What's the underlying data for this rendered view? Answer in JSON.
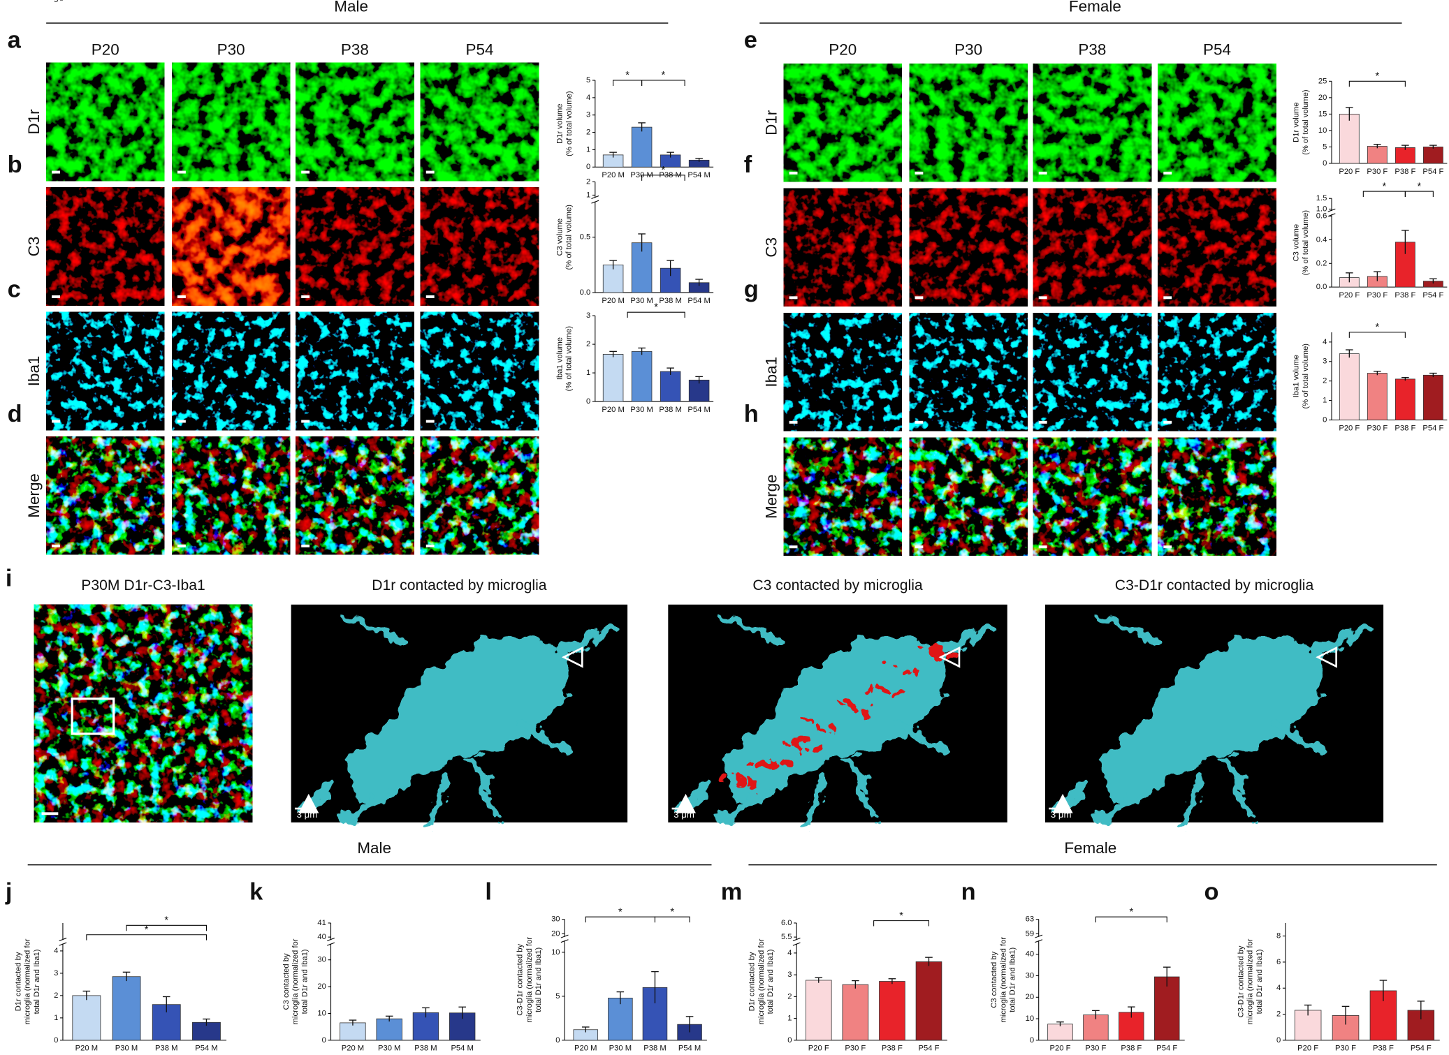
{
  "headers": {
    "male_top": "Male",
    "female_top": "Female",
    "male_bottom": "Male",
    "female_bottom": "Female"
  },
  "panel_letters": [
    "a",
    "b",
    "c",
    "d",
    "e",
    "f",
    "g",
    "h",
    "i",
    "j",
    "k",
    "l",
    "m",
    "n",
    "o"
  ],
  "male_columns": [
    "P20",
    "P30",
    "P38",
    "P54"
  ],
  "female_columns": [
    "P20",
    "P30",
    "P38",
    "P54"
  ],
  "male_rows": [
    "D1r",
    "C3",
    "Iba1",
    "Merge"
  ],
  "female_rows": [
    "D1r",
    "C3",
    "Iba1",
    "Merge"
  ],
  "panel_i": {
    "titles": [
      "P30M D1r-C3-Iba1",
      "D1r contacted by microglia",
      "C3 contacted by microglia",
      "C3-D1r contacted by microglia"
    ],
    "scale_label": "3 μm"
  },
  "chart_data": [
    {
      "type": "bar",
      "ylabel": [
        "D1r volume",
        "(% of total volume)"
      ],
      "categories": [
        "P20 M",
        "P30 M",
        "P38 M",
        "P54 M"
      ],
      "values": [
        0.7,
        2.3,
        0.7,
        0.4
      ],
      "errors": [
        0.15,
        0.25,
        0.15,
        0.1
      ],
      "colors": [
        "#c4daf2",
        "#5b8fd6",
        "#3553b5",
        "#27388a"
      ],
      "ylim": [
        0,
        5
      ],
      "yticks": [
        0,
        1,
        2,
        3,
        4,
        5
      ],
      "annotations": [
        "*",
        "*"
      ]
    },
    {
      "type": "bar",
      "ylabel": [
        "C3 volume",
        "(% of total volume)"
      ],
      "categories": [
        "P20 M",
        "P30 M",
        "P38 M",
        "P54 M"
      ],
      "values": [
        0.25,
        0.45,
        0.22,
        0.09
      ],
      "errors": [
        0.04,
        0.08,
        0.07,
        0.03
      ],
      "colors": [
        "#c4daf2",
        "#5b8fd6",
        "#3553b5",
        "#27388a"
      ],
      "ylim": [
        0,
        2
      ],
      "yticks": [
        {
          "value": 0,
          "label": "0.0"
        },
        0.5,
        1,
        2
      ],
      "axis_break": [
        0.8,
        1
      ],
      "annotations": [
        "*"
      ]
    },
    {
      "type": "bar",
      "ylabel": [
        "Iba1 volume",
        "(% of total volume)"
      ],
      "categories": [
        "P20 M",
        "P30 M",
        "P38 M",
        "P54 M"
      ],
      "values": [
        1.65,
        1.75,
        1.05,
        0.75
      ],
      "errors": [
        0.1,
        0.12,
        0.12,
        0.12
      ],
      "colors": [
        "#c4daf2",
        "#5b8fd6",
        "#3553b5",
        "#27388a"
      ],
      "ylim": [
        0,
        3
      ],
      "yticks": [
        0,
        1,
        2,
        3
      ],
      "annotations": [
        "*"
      ]
    },
    {
      "type": "bar",
      "ylabel": [
        "D1r volume",
        "(% of total volume)"
      ],
      "categories": [
        "P20 F",
        "P30 F",
        "P38 F",
        "P54 F"
      ],
      "values": [
        15,
        5.2,
        4.8,
        5
      ],
      "errors": [
        2,
        0.6,
        0.7,
        0.5
      ],
      "colors": [
        "#fad9dc",
        "#f08282",
        "#e8232a",
        "#a01c20"
      ],
      "ylim": [
        0,
        25
      ],
      "yticks": [
        0,
        5,
        10,
        15,
        20,
        25
      ],
      "annotations": [
        "*"
      ]
    },
    {
      "type": "bar",
      "ylabel": [
        "C3 volume",
        "(% of total volume)"
      ],
      "categories": [
        "P20 F",
        "P30 F",
        "P38 F",
        "P54 F"
      ],
      "values": [
        0.08,
        0.09,
        0.38,
        0.05
      ],
      "errors": [
        0.04,
        0.04,
        0.1,
        0.02
      ],
      "colors": [
        "#fad9dc",
        "#f08282",
        "#e8232a",
        "#a01c20"
      ],
      "ylim": [
        0,
        1.5
      ],
      "yticks": [
        {
          "value": 0,
          "label": "0.0"
        },
        0.2,
        0.4,
        0.6,
        {
          "value": 1,
          "label": "1.0"
        },
        1.5
      ],
      "axis_break": [
        0.6,
        1
      ],
      "annotations": [
        "*",
        "*"
      ]
    },
    {
      "type": "bar",
      "ylabel": [
        "Iba1 volume",
        "(% of total volume)"
      ],
      "categories": [
        "P20 F",
        "P30 F",
        "P38 F",
        "P54 F"
      ],
      "values": [
        3.4,
        2.4,
        2.1,
        2.3
      ],
      "errors": [
        0.2,
        0.1,
        0.08,
        0.1
      ],
      "colors": [
        "#fad9dc",
        "#f08282",
        "#e8232a",
        "#a01c20"
      ],
      "ylim": [
        0,
        4.5
      ],
      "yticks": [
        0,
        1,
        2,
        3,
        4
      ],
      "annotations": [
        "*"
      ]
    },
    {
      "type": "bar",
      "ylabel": [
        "D1r contacted by",
        "microglia (normalized for",
        "total D1r and Iba1)"
      ],
      "categories": [
        "P20 M",
        "P30 M",
        "P38 M",
        "P54 M"
      ],
      "values": [
        2.0,
        2.85,
        1.6,
        0.8
      ],
      "errors": [
        0.2,
        0.2,
        0.35,
        0.15
      ],
      "colors": [
        "#c4daf2",
        "#5b8fd6",
        "#3553b5",
        "#27388a"
      ],
      "ylim": [
        0,
        5
      ],
      "yticks": [
        0,
        1,
        2,
        3,
        4,
        5
      ],
      "axis_break": [
        4.2,
        5
      ],
      "annotations": [
        "*",
        "*"
      ]
    },
    {
      "type": "bar",
      "ylabel": [
        "C3 contacted by",
        "microglia (normalized for",
        "total D1r and Iba1)"
      ],
      "categories": [
        "P20 M",
        "P30 M",
        "P38 M",
        "P54 M"
      ],
      "values": [
        6.5,
        8,
        10.3,
        10.2
      ],
      "errors": [
        1,
        1,
        1.8,
        2.2
      ],
      "colors": [
        "#c4daf2",
        "#5b8fd6",
        "#3553b5",
        "#27388a"
      ],
      "ylim": [
        0,
        41
      ],
      "yticks": [
        0,
        10,
        20,
        30,
        40,
        41
      ],
      "axis_break": [
        35,
        40
      ]
    },
    {
      "type": "bar",
      "ylabel": [
        "C3-D1r contacted by",
        "microglia (normalized for",
        "total D1r and Iba1)"
      ],
      "categories": [
        "P20 M",
        "P30 M",
        "P38 M",
        "P54 M"
      ],
      "values": [
        1.2,
        4.8,
        6,
        1.8
      ],
      "errors": [
        0.3,
        0.7,
        1.8,
        0.9
      ],
      "colors": [
        "#c4daf2",
        "#5b8fd6",
        "#3553b5",
        "#27388a"
      ],
      "ylim": [
        0,
        30
      ],
      "yticks": [
        0,
        5,
        10,
        20,
        30
      ],
      "axis_break": [
        11,
        20
      ],
      "annotations": [
        "*",
        "*"
      ]
    },
    {
      "type": "bar",
      "ylabel": [
        "D1r contacted by",
        "microglia (normalized for",
        "total D1r and Iba1)"
      ],
      "categories": [
        "P20 F",
        "P30 F",
        "P38 F",
        "P54 F"
      ],
      "values": [
        2.75,
        2.55,
        2.7,
        3.6
      ],
      "errors": [
        0.12,
        0.18,
        0.12,
        0.2
      ],
      "colors": [
        "#fad9dc",
        "#f08282",
        "#e8232a",
        "#a01c20"
      ],
      "ylim": [
        0,
        6
      ],
      "yticks": [
        0,
        1,
        2,
        3,
        4,
        5.5,
        {
          "value": 6,
          "label": "6.0"
        }
      ],
      "axis_break": [
        4.3,
        5.5
      ],
      "annotations": [
        "*"
      ]
    },
    {
      "type": "bar",
      "ylabel": [
        "C3 contacted by",
        "microglia (normalized for",
        "total D1r and Iba1)"
      ],
      "categories": [
        "P20 F",
        "P30 F",
        "P38 F",
        "P54 F"
      ],
      "values": [
        7.5,
        11.8,
        13,
        29.5
      ],
      "errors": [
        1,
        2,
        2.5,
        4.5
      ],
      "colors": [
        "#fad9dc",
        "#f08282",
        "#e8232a",
        "#a01c20"
      ],
      "ylim": [
        0,
        63
      ],
      "yticks": [
        0,
        10,
        20,
        30,
        40,
        59,
        63
      ],
      "axis_break": [
        45,
        59
      ],
      "annotations": [
        "*"
      ]
    },
    {
      "type": "bar",
      "ylabel": [
        "C3-D1r contacted by",
        "microglia (normalized for",
        "total D1r and Iba1)"
      ],
      "categories": [
        "P20 F",
        "P30 F",
        "P38 F",
        "P54 F"
      ],
      "values": [
        2.3,
        1.9,
        3.8,
        2.3
      ],
      "errors": [
        0.4,
        0.7,
        0.8,
        0.7
      ],
      "colors": [
        "#fad9dc",
        "#f08282",
        "#e8232a",
        "#a01c20"
      ],
      "ylim": [
        0,
        9
      ],
      "yticks": [
        0,
        2,
        4,
        6,
        8
      ]
    }
  ]
}
